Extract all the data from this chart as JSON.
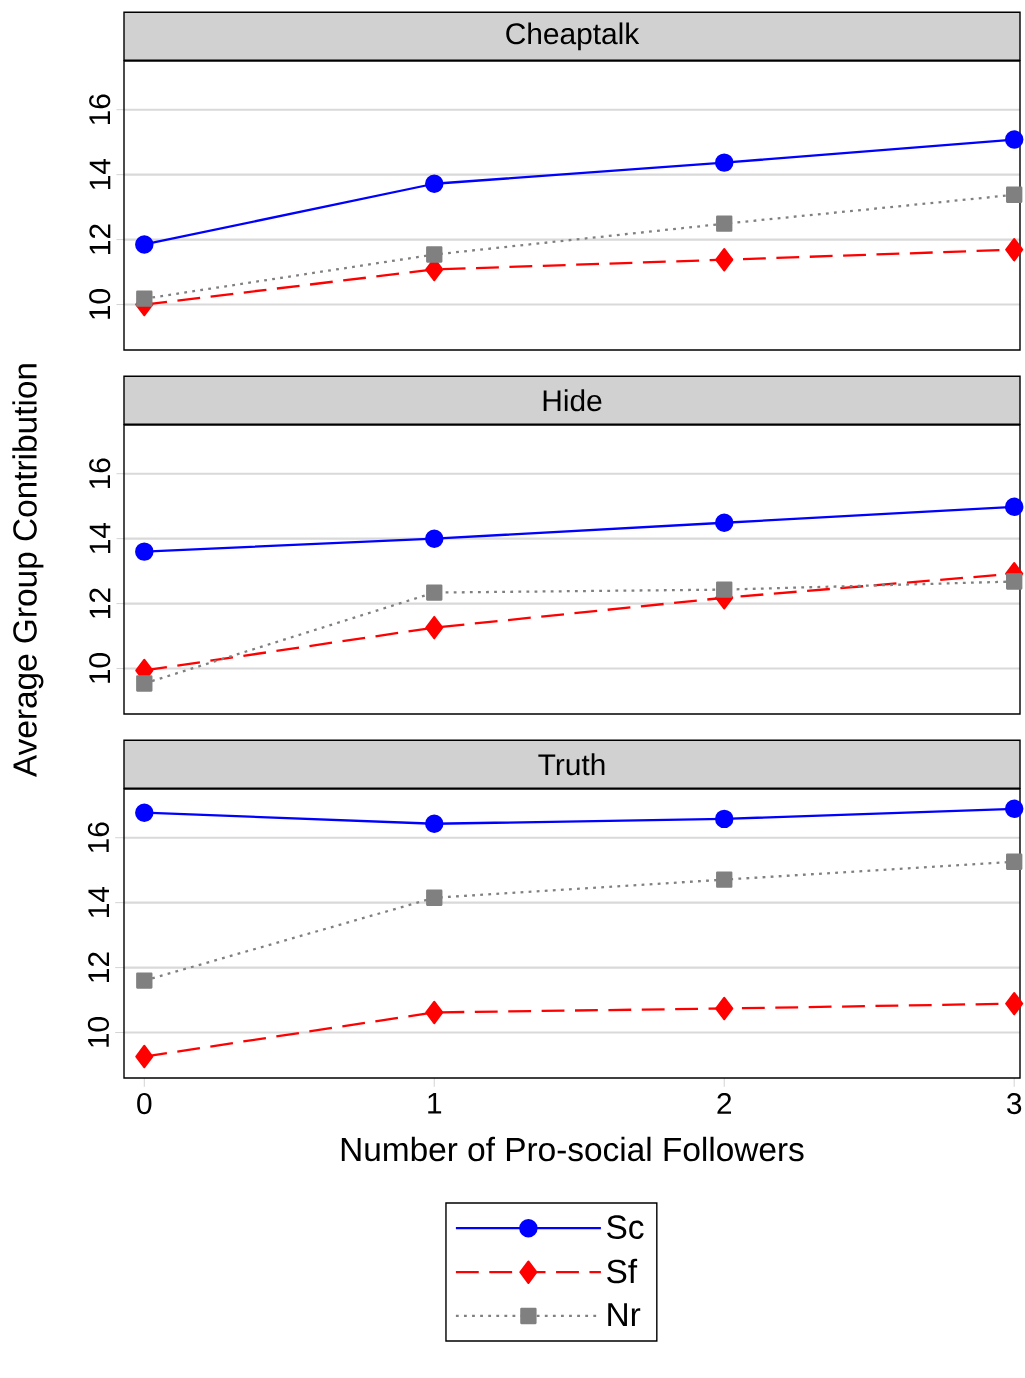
{
  "chart_data": [
    {
      "type": "line",
      "title": "Cheaptalk",
      "x": [
        0,
        1,
        2,
        3
      ],
      "xlim": [
        -0.07,
        3.02
      ],
      "xticks": [
        0,
        1,
        2,
        3
      ],
      "ylim": [
        8.6,
        17.5
      ],
      "yticks": [
        10,
        12,
        14,
        16
      ],
      "grid": "y",
      "tick_labels": "y",
      "series": [
        {
          "color": "#0000ff",
          "marker": "circle",
          "line_style": "solid",
          "values": [
            11.85,
            13.72,
            14.37,
            15.08
          ]
        },
        {
          "color": "#ff0000",
          "marker": "diamond",
          "line_style": "dashed",
          "values": [
            10.0,
            11.08,
            11.38,
            11.69
          ]
        },
        {
          "color": "#808080",
          "marker": "square",
          "line_style": "dotted",
          "values": [
            10.18,
            11.54,
            12.49,
            13.38
          ]
        }
      ]
    },
    {
      "type": "line",
      "title": "Hide",
      "ylabel": "Average Group Contribution",
      "x": [
        0,
        1,
        2,
        3
      ],
      "xlim": [
        -0.07,
        3.02
      ],
      "xticks": [
        0,
        1,
        2,
        3
      ],
      "ylim": [
        8.6,
        17.5
      ],
      "yticks": [
        10,
        12,
        14,
        16
      ],
      "grid": "y",
      "tick_labels": "y",
      "series": [
        {
          "color": "#0000ff",
          "marker": "circle",
          "line_style": "solid",
          "values": [
            13.6,
            14.0,
            14.49,
            14.98
          ]
        },
        {
          "color": "#ff0000",
          "marker": "diamond",
          "line_style": "dashed",
          "values": [
            9.94,
            11.26,
            12.18,
            12.92
          ]
        },
        {
          "color": "#808080",
          "marker": "square",
          "line_style": "dotted",
          "values": [
            9.54,
            12.34,
            12.43,
            12.68
          ]
        }
      ]
    },
    {
      "type": "line",
      "title": "Truth",
      "xlabel": "Number of Pro-social Followers",
      "x": [
        0,
        1,
        2,
        3
      ],
      "xlim": [
        -0.07,
        3.02
      ],
      "xticks": [
        0,
        1,
        2,
        3
      ],
      "ylim": [
        8.6,
        17.5
      ],
      "yticks": [
        10,
        12,
        14,
        16
      ],
      "grid": "y",
      "legend": "bottom",
      "series": [
        {
          "name": "Sc",
          "color": "#0000ff",
          "marker": "circle",
          "line_style": "solid",
          "values": [
            16.77,
            16.43,
            16.58,
            16.89
          ]
        },
        {
          "name": "Sf",
          "color": "#ff0000",
          "marker": "diamond",
          "line_style": "dashed",
          "values": [
            9.26,
            10.62,
            10.74,
            10.89
          ]
        },
        {
          "name": "Nr",
          "color": "#808080",
          "marker": "square",
          "line_style": "dotted",
          "values": [
            11.6,
            14.15,
            14.71,
            15.26
          ]
        }
      ]
    }
  ]
}
